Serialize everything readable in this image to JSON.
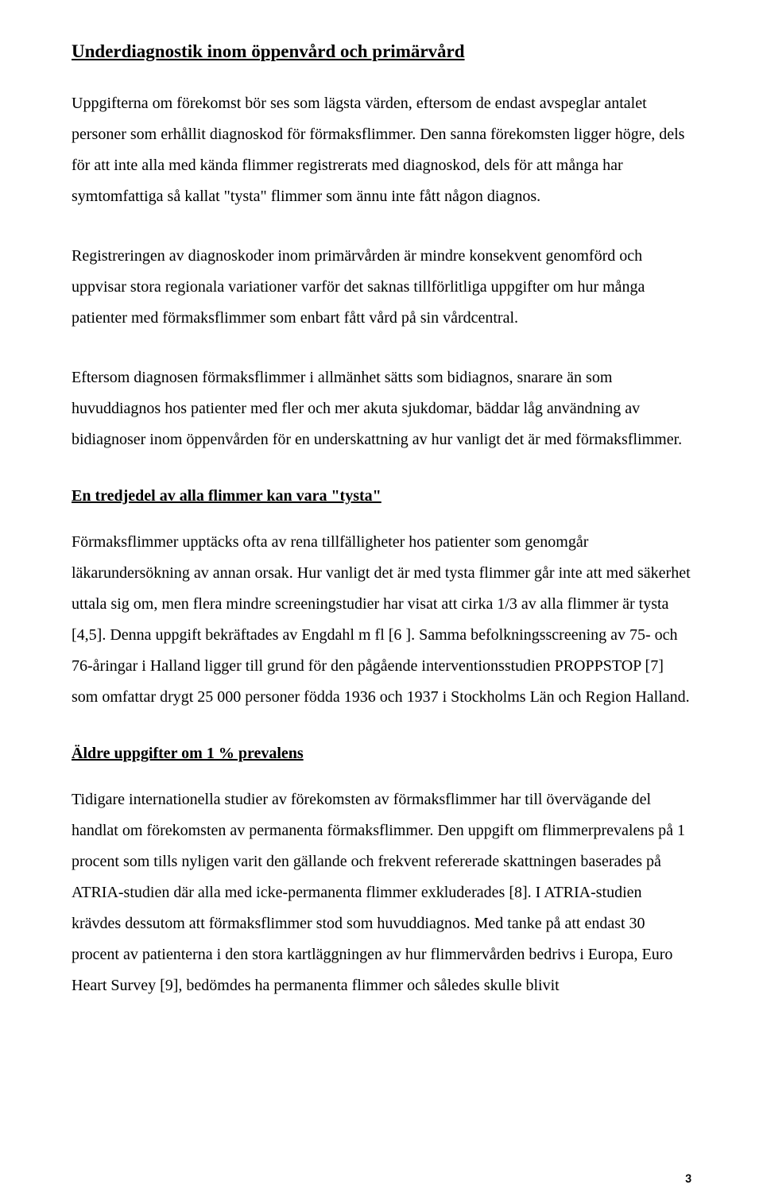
{
  "document": {
    "font_family": "Times New Roman",
    "background_color": "#ffffff",
    "text_color": "#000000",
    "heading_main_fontsize": 23,
    "heading_sub_fontsize": 20,
    "body_fontsize": 20,
    "line_height": 1.95,
    "page_number_fontsize": 16,
    "page_number": "3",
    "sections": {
      "h1": "Underdiagnostik inom öppenvård och primärvård",
      "p1": "Uppgifterna om förekomst bör ses som lägsta värden, eftersom de endast avspeglar antalet personer som erhållit diagnoskod för förmaksflimmer. Den sanna förekomsten ligger högre, dels för att inte alla med kända flimmer registrerats med diagnoskod, dels för att många har symtomfattiga så kallat \"tysta\" flimmer som ännu inte fått någon diagnos.",
      "p2": "Registreringen av diagnoskoder inom primärvården är mindre konsekvent genomförd och uppvisar stora regionala variationer varför det saknas tillförlitliga uppgifter om hur många patienter med förmaksflimmer som enbart fått vård på sin vårdcentral.",
      "p3": "Eftersom diagnosen förmaksflimmer i allmänhet sätts som bidiagnos, snarare än som huvuddiagnos hos patienter med fler och mer akuta sjukdomar, bäddar låg användning av bidiagnoser inom öppenvården för en underskattning av hur vanligt det är med förmaksflimmer.",
      "h2": "En tredjedel av alla flimmer kan vara \"tysta\"",
      "p4": "Förmaksflimmer upptäcks ofta av rena tillfälligheter hos patienter som genomgår läkarundersökning av annan orsak. Hur vanligt det är med tysta flimmer går inte att med säkerhet uttala sig om, men flera mindre screeningstudier har visat att cirka 1/3 av alla flimmer är tysta [4,5]. Denna uppgift bekräftades av Engdahl m fl [6 ]. Samma befolkningsscreening av 75- och 76-åringar i Halland ligger till grund för den pågående interventionsstudien PROPPSTOP [7] som omfattar drygt 25 000 personer födda 1936 och 1937 i Stockholms Län och Region Halland.",
      "h3": "Äldre uppgifter om 1 % prevalens",
      "p5": "Tidigare internationella studier av förekomsten av förmaksflimmer har till övervägande del handlat om förekomsten av permanenta förmaksflimmer. Den uppgift om flimmerprevalens på 1 procent som tills nyligen varit den gällande och frekvent refererade skattningen baserades på ATRIA-studien där alla med icke-permanenta flimmer exkluderades [8]. I ATRIA-studien krävdes dessutom att förmaksflimmer stod som huvuddiagnos. Med tanke på att endast 30 procent av patienterna i den stora kartläggningen av hur flimmervården bedrivs i Europa, Euro Heart Survey [9], bedömdes ha permanenta flimmer och således skulle blivit"
    }
  }
}
